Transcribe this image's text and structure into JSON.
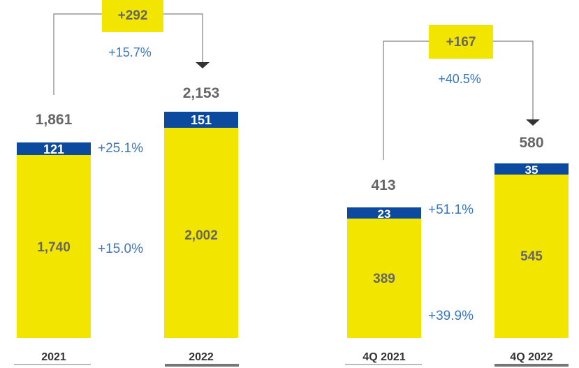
{
  "colors": {
    "yellow": "#f2e500",
    "blue": "#0b4a9e",
    "value_text": "#666666",
    "pct_text": "#3a76b8",
    "axis_dark": "#333333",
    "axis_gray": "#777777"
  },
  "chart_data": [
    {
      "type": "bar",
      "stacked": true,
      "categories": [
        "2021",
        "2022"
      ],
      "series": [
        {
          "values": [
            1740,
            2002
          ]
        },
        {
          "values": [
            121,
            151
          ]
        }
      ],
      "totals": [
        "1,861",
        "2,153"
      ],
      "segment_labels": [
        [
          "1,740",
          "121"
        ],
        [
          "2,002",
          "151"
        ]
      ],
      "growth_labels": {
        "bottom": "+15.0%",
        "top": "+25.1%"
      },
      "change": {
        "absolute": "+292",
        "percent": "+15.7%"
      }
    },
    {
      "type": "bar",
      "stacked": true,
      "categories": [
        "4Q 2021",
        "4Q 2022"
      ],
      "series": [
        {
          "values": [
            389,
            545
          ]
        },
        {
          "values": [
            23,
            35
          ]
        }
      ],
      "totals": [
        "413",
        "580"
      ],
      "segment_labels": [
        [
          "389",
          "23"
        ],
        [
          "545",
          "35"
        ]
      ],
      "growth_labels": {
        "bottom": "+39.9%",
        "top": "+51.1%"
      },
      "change": {
        "absolute": "+167",
        "percent": "+40.5%"
      }
    }
  ]
}
